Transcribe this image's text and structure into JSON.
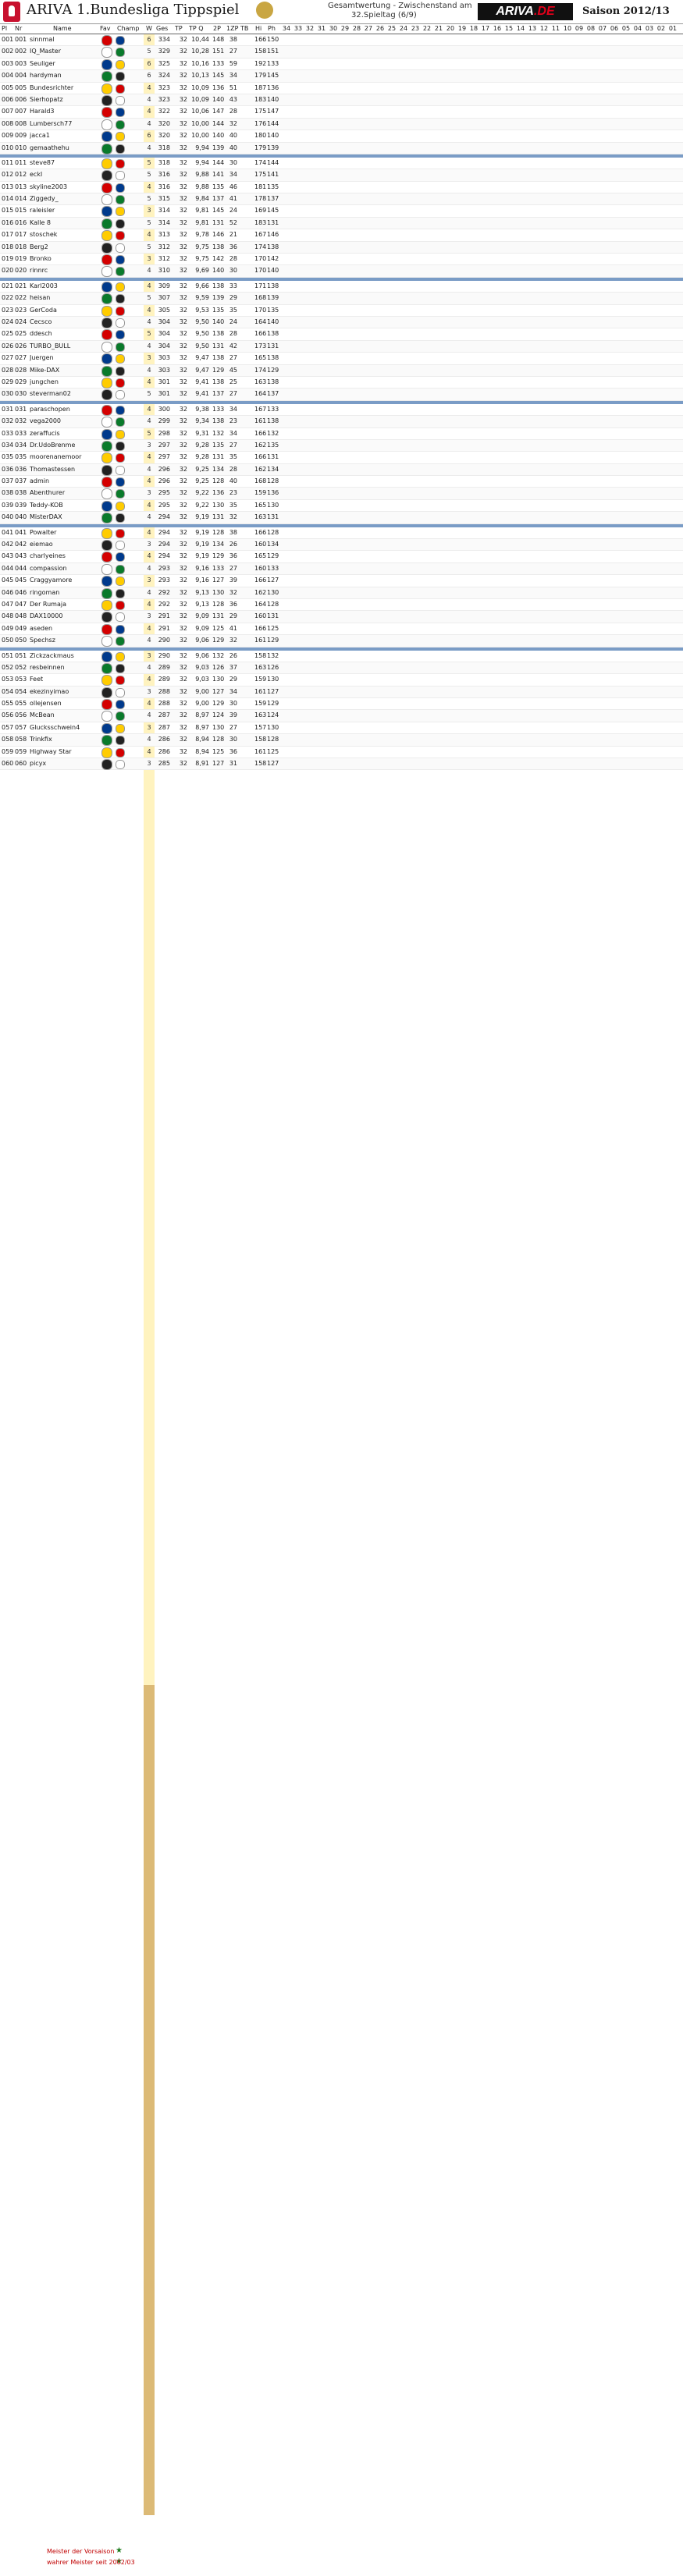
{
  "header": {
    "title": "ARIVA 1.Bundesliga Tippspiel",
    "subtitle_line1": "Gesamtwertung - Zwischenstand am",
    "subtitle_line2": "32.Spieltag (6/9)",
    "brand_main": "ARIVA",
    "brand_dot": ".DE",
    "season": "Saison 2012/13"
  },
  "columns": {
    "rank": "Pl",
    "nr": "Nr",
    "name": "Name",
    "fav": "Fav",
    "champ": "Champ",
    "w": "W",
    "ges": "Ges",
    "tp": "TP",
    "tpq": "TP Q",
    "two_p": "2P",
    "one_zp": "1ZP",
    "tb": "TB",
    "hi": "Hi",
    "ph": "Ph",
    "matchdays": [
      "34",
      "33",
      "32",
      "31",
      "30",
      "29",
      "28",
      "27",
      "26",
      "25",
      "24",
      "23",
      "22",
      "21",
      "20",
      "19",
      "18",
      "17",
      "16",
      "15",
      "14",
      "13",
      "12",
      "11",
      "10",
      "09",
      "08",
      "07",
      "06",
      "05",
      "04",
      "03",
      "02",
      "01"
    ]
  },
  "rows": [
    {
      "rank": "001",
      "nr": "001",
      "name": "sinnmal",
      "ges": "334",
      "tp": "32",
      "tpq": "10,44",
      "two_p": "148",
      "one_zp": "38",
      "tb": "",
      "hi": "166",
      "ph": "150",
      "w": "6"
    },
    {
      "rank": "002",
      "nr": "002",
      "name": "IQ_Master",
      "ges": "329",
      "tp": "32",
      "tpq": "10,28",
      "two_p": "151",
      "one_zp": "27",
      "tb": "",
      "hi": "158",
      "ph": "151",
      "w": "5"
    },
    {
      "rank": "003",
      "nr": "003",
      "name": "Seuliger",
      "ges": "325",
      "tp": "32",
      "tpq": "10,16",
      "two_p": "133",
      "one_zp": "59",
      "tb": "",
      "hi": "192",
      "ph": "133",
      "w": "6"
    },
    {
      "rank": "004",
      "nr": "004",
      "name": "hardyman",
      "ges": "324",
      "tp": "32",
      "tpq": "10,13",
      "two_p": "145",
      "one_zp": "34",
      "tb": "",
      "hi": "179",
      "ph": "145",
      "w": "6"
    },
    {
      "rank": "005",
      "nr": "005",
      "name": "Bundesrichter",
      "ges": "323",
      "tp": "32",
      "tpq": "10,09",
      "two_p": "136",
      "one_zp": "51",
      "tb": "",
      "hi": "187",
      "ph": "136",
      "w": "4"
    },
    {
      "rank": "006",
      "nr": "006",
      "name": "Sierhopatz",
      "ges": "323",
      "tp": "32",
      "tpq": "10,09",
      "two_p": "140",
      "one_zp": "43",
      "tb": "",
      "hi": "183",
      "ph": "140",
      "w": "4"
    },
    {
      "rank": "007",
      "nr": "007",
      "name": "Harald3",
      "ges": "322",
      "tp": "32",
      "tpq": "10,06",
      "two_p": "147",
      "one_zp": "28",
      "tb": "",
      "hi": "175",
      "ph": "147",
      "w": "4"
    },
    {
      "rank": "008",
      "nr": "008",
      "name": "Lumbersch77",
      "ges": "320",
      "tp": "32",
      "tpq": "10,00",
      "two_p": "144",
      "one_zp": "32",
      "tb": "",
      "hi": "176",
      "ph": "144",
      "w": "4"
    },
    {
      "rank": "009",
      "nr": "009",
      "name": "jacca1",
      "ges": "320",
      "tp": "32",
      "tpq": "10,00",
      "two_p": "140",
      "one_zp": "40",
      "tb": "",
      "hi": "180",
      "ph": "140",
      "w": "6"
    },
    {
      "rank": "010",
      "nr": "010",
      "name": "gemaathehu",
      "ges": "318",
      "tp": "32",
      "tpq": "9,94",
      "two_p": "139",
      "one_zp": "40",
      "tb": "",
      "hi": "179",
      "ph": "139",
      "w": "4"
    },
    {
      "rank": "011",
      "nr": "011",
      "name": "steve87",
      "ges": "318",
      "tp": "32",
      "tpq": "9,94",
      "two_p": "144",
      "one_zp": "30",
      "tb": "",
      "hi": "174",
      "ph": "144",
      "w": "5"
    },
    {
      "rank": "012",
      "nr": "012",
      "name": "eckl",
      "ges": "316",
      "tp": "32",
      "tpq": "9,88",
      "two_p": "141",
      "one_zp": "34",
      "tb": "",
      "hi": "175",
      "ph": "141",
      "w": "5"
    },
    {
      "rank": "013",
      "nr": "013",
      "name": "skyline2003",
      "ges": "316",
      "tp": "32",
      "tpq": "9,88",
      "two_p": "135",
      "one_zp": "46",
      "tb": "",
      "hi": "181",
      "ph": "135",
      "w": "4"
    },
    {
      "rank": "014",
      "nr": "014",
      "name": "Ziggedy_",
      "ges": "315",
      "tp": "32",
      "tpq": "9,84",
      "two_p": "137",
      "one_zp": "41",
      "tb": "",
      "hi": "178",
      "ph": "137",
      "w": "5"
    },
    {
      "rank": "015",
      "nr": "015",
      "name": "raleisler",
      "ges": "314",
      "tp": "32",
      "tpq": "9,81",
      "two_p": "145",
      "one_zp": "24",
      "tb": "",
      "hi": "169",
      "ph": "145",
      "w": "3"
    },
    {
      "rank": "016",
      "nr": "016",
      "name": "Kalle 8",
      "ges": "314",
      "tp": "32",
      "tpq": "9,81",
      "two_p": "131",
      "one_zp": "52",
      "tb": "",
      "hi": "183",
      "ph": "131",
      "w": "5"
    },
    {
      "rank": "017",
      "nr": "017",
      "name": "stoschek",
      "ges": "313",
      "tp": "32",
      "tpq": "9,78",
      "two_p": "146",
      "one_zp": "21",
      "tb": "",
      "hi": "167",
      "ph": "146",
      "w": "4"
    },
    {
      "rank": "018",
      "nr": "018",
      "name": "Berg2",
      "ges": "312",
      "tp": "32",
      "tpq": "9,75",
      "two_p": "138",
      "one_zp": "36",
      "tb": "",
      "hi": "174",
      "ph": "138",
      "w": "5"
    },
    {
      "rank": "019",
      "nr": "019",
      "name": "Bronko",
      "ges": "312",
      "tp": "32",
      "tpq": "9,75",
      "two_p": "142",
      "one_zp": "28",
      "tb": "",
      "hi": "170",
      "ph": "142",
      "w": "3"
    },
    {
      "rank": "020",
      "nr": "020",
      "name": "rinnrc",
      "ges": "310",
      "tp": "32",
      "tpq": "9,69",
      "two_p": "140",
      "one_zp": "30",
      "tb": "",
      "hi": "170",
      "ph": "140",
      "w": "4"
    },
    {
      "rank": "021",
      "nr": "021",
      "name": "Karl2003",
      "ges": "309",
      "tp": "32",
      "tpq": "9,66",
      "two_p": "138",
      "one_zp": "33",
      "tb": "",
      "hi": "171",
      "ph": "138",
      "w": "4"
    },
    {
      "rank": "022",
      "nr": "022",
      "name": "heisan",
      "ges": "307",
      "tp": "32",
      "tpq": "9,59",
      "two_p": "139",
      "one_zp": "29",
      "tb": "",
      "hi": "168",
      "ph": "139",
      "w": "5"
    },
    {
      "rank": "023",
      "nr": "023",
      "name": "GerCoda",
      "ges": "305",
      "tp": "32",
      "tpq": "9,53",
      "two_p": "135",
      "one_zp": "35",
      "tb": "",
      "hi": "170",
      "ph": "135",
      "w": "4"
    },
    {
      "rank": "024",
      "nr": "024",
      "name": "Cecsco",
      "ges": "304",
      "tp": "32",
      "tpq": "9,50",
      "two_p": "140",
      "one_zp": "24",
      "tb": "",
      "hi": "164",
      "ph": "140",
      "w": "4"
    },
    {
      "rank": "025",
      "nr": "025",
      "name": "ddesch",
      "ges": "304",
      "tp": "32",
      "tpq": "9,50",
      "two_p": "138",
      "one_zp": "28",
      "tb": "",
      "hi": "166",
      "ph": "138",
      "w": "5"
    },
    {
      "rank": "026",
      "nr": "026",
      "name": "TURBO_BULL",
      "ges": "304",
      "tp": "32",
      "tpq": "9,50",
      "two_p": "131",
      "one_zp": "42",
      "tb": "",
      "hi": "173",
      "ph": "131",
      "w": "4"
    },
    {
      "rank": "027",
      "nr": "027",
      "name": "Juergen",
      "ges": "303",
      "tp": "32",
      "tpq": "9,47",
      "two_p": "138",
      "one_zp": "27",
      "tb": "",
      "hi": "165",
      "ph": "138",
      "w": "3"
    },
    {
      "rank": "028",
      "nr": "028",
      "name": "Mike-DAX",
      "ges": "303",
      "tp": "32",
      "tpq": "9,47",
      "two_p": "129",
      "one_zp": "45",
      "tb": "",
      "hi": "174",
      "ph": "129",
      "w": "4"
    },
    {
      "rank": "029",
      "nr": "029",
      "name": "jungchen",
      "ges": "301",
      "tp": "32",
      "tpq": "9,41",
      "two_p": "138",
      "one_zp": "25",
      "tb": "",
      "hi": "163",
      "ph": "138",
      "w": "4"
    },
    {
      "rank": "030",
      "nr": "030",
      "name": "steverman02",
      "ges": "301",
      "tp": "32",
      "tpq": "9,41",
      "two_p": "137",
      "one_zp": "27",
      "tb": "",
      "hi": "164",
      "ph": "137",
      "w": "5"
    },
    {
      "rank": "031",
      "nr": "031",
      "name": "paraschopen",
      "ges": "300",
      "tp": "32",
      "tpq": "9,38",
      "two_p": "133",
      "one_zp": "34",
      "tb": "",
      "hi": "167",
      "ph": "133",
      "w": "4"
    },
    {
      "rank": "032",
      "nr": "032",
      "name": "vega2000",
      "ges": "299",
      "tp": "32",
      "tpq": "9,34",
      "two_p": "138",
      "one_zp": "23",
      "tb": "",
      "hi": "161",
      "ph": "138",
      "w": "4"
    },
    {
      "rank": "033",
      "nr": "033",
      "name": "zeraffucis",
      "ges": "298",
      "tp": "32",
      "tpq": "9,31",
      "two_p": "132",
      "one_zp": "34",
      "tb": "",
      "hi": "166",
      "ph": "132",
      "w": "5"
    },
    {
      "rank": "034",
      "nr": "034",
      "name": "Dr.UdoBrenme",
      "ges": "297",
      "tp": "32",
      "tpq": "9,28",
      "two_p": "135",
      "one_zp": "27",
      "tb": "",
      "hi": "162",
      "ph": "135",
      "w": "3"
    },
    {
      "rank": "035",
      "nr": "035",
      "name": "moorenanemoor",
      "ges": "297",
      "tp": "32",
      "tpq": "9,28",
      "two_p": "131",
      "one_zp": "35",
      "tb": "",
      "hi": "166",
      "ph": "131",
      "w": "4"
    },
    {
      "rank": "036",
      "nr": "036",
      "name": "Thomastessen",
      "ges": "296",
      "tp": "32",
      "tpq": "9,25",
      "two_p": "134",
      "one_zp": "28",
      "tb": "",
      "hi": "162",
      "ph": "134",
      "w": "4"
    },
    {
      "rank": "037",
      "nr": "037",
      "name": "admin",
      "ges": "296",
      "tp": "32",
      "tpq": "9,25",
      "two_p": "128",
      "one_zp": "40",
      "tb": "",
      "hi": "168",
      "ph": "128",
      "w": "4"
    },
    {
      "rank": "038",
      "nr": "038",
      "name": "Abenthurer",
      "ges": "295",
      "tp": "32",
      "tpq": "9,22",
      "two_p": "136",
      "one_zp": "23",
      "tb": "",
      "hi": "159",
      "ph": "136",
      "w": "3"
    },
    {
      "rank": "039",
      "nr": "039",
      "name": "Teddy-KOB",
      "ges": "295",
      "tp": "32",
      "tpq": "9,22",
      "two_p": "130",
      "one_zp": "35",
      "tb": "",
      "hi": "165",
      "ph": "130",
      "w": "4"
    },
    {
      "rank": "040",
      "nr": "040",
      "name": "MisterDAX",
      "ges": "294",
      "tp": "32",
      "tpq": "9,19",
      "two_p": "131",
      "one_zp": "32",
      "tb": "",
      "hi": "163",
      "ph": "131",
      "w": "4"
    },
    {
      "rank": "041",
      "nr": "041",
      "name": "Powalter",
      "ges": "294",
      "tp": "32",
      "tpq": "9,19",
      "two_p": "128",
      "one_zp": "38",
      "tb": "",
      "hi": "166",
      "ph": "128",
      "w": "4"
    },
    {
      "rank": "042",
      "nr": "042",
      "name": "eiemao",
      "ges": "294",
      "tp": "32",
      "tpq": "9,19",
      "two_p": "134",
      "one_zp": "26",
      "tb": "",
      "hi": "160",
      "ph": "134",
      "w": "3"
    },
    {
      "rank": "043",
      "nr": "043",
      "name": "charlyeines",
      "ges": "294",
      "tp": "32",
      "tpq": "9,19",
      "two_p": "129",
      "one_zp": "36",
      "tb": "",
      "hi": "165",
      "ph": "129",
      "w": "4"
    },
    {
      "rank": "044",
      "nr": "044",
      "name": "compassion",
      "ges": "293",
      "tp": "32",
      "tpq": "9,16",
      "two_p": "133",
      "one_zp": "27",
      "tb": "",
      "hi": "160",
      "ph": "133",
      "w": "4"
    },
    {
      "rank": "045",
      "nr": "045",
      "name": "Craggyamore",
      "ges": "293",
      "tp": "32",
      "tpq": "9,16",
      "two_p": "127",
      "one_zp": "39",
      "tb": "",
      "hi": "166",
      "ph": "127",
      "w": "3"
    },
    {
      "rank": "046",
      "nr": "046",
      "name": "ringoman",
      "ges": "292",
      "tp": "32",
      "tpq": "9,13",
      "two_p": "130",
      "one_zp": "32",
      "tb": "",
      "hi": "162",
      "ph": "130",
      "w": "4"
    },
    {
      "rank": "047",
      "nr": "047",
      "name": "Der Rumaja",
      "ges": "292",
      "tp": "32",
      "tpq": "9,13",
      "two_p": "128",
      "one_zp": "36",
      "tb": "",
      "hi": "164",
      "ph": "128",
      "w": "4"
    },
    {
      "rank": "048",
      "nr": "048",
      "name": "DAX10000",
      "ges": "291",
      "tp": "32",
      "tpq": "9,09",
      "two_p": "131",
      "one_zp": "29",
      "tb": "",
      "hi": "160",
      "ph": "131",
      "w": "3"
    },
    {
      "rank": "049",
      "nr": "049",
      "name": "aseden",
      "ges": "291",
      "tp": "32",
      "tpq": "9,09",
      "two_p": "125",
      "one_zp": "41",
      "tb": "",
      "hi": "166",
      "ph": "125",
      "w": "4"
    },
    {
      "rank": "050",
      "nr": "050",
      "name": "Spechsz",
      "ges": "290",
      "tp": "32",
      "tpq": "9,06",
      "two_p": "129",
      "one_zp": "32",
      "tb": "",
      "hi": "161",
      "ph": "129",
      "w": "4"
    },
    {
      "rank": "051",
      "nr": "051",
      "name": "Zickzackmaus",
      "ges": "290",
      "tp": "32",
      "tpq": "9,06",
      "two_p": "132",
      "one_zp": "26",
      "tb": "",
      "hi": "158",
      "ph": "132",
      "w": "3"
    },
    {
      "rank": "052",
      "nr": "052",
      "name": "resbeinnen",
      "ges": "289",
      "tp": "32",
      "tpq": "9,03",
      "two_p": "126",
      "one_zp": "37",
      "tb": "",
      "hi": "163",
      "ph": "126",
      "w": "4"
    },
    {
      "rank": "053",
      "nr": "053",
      "name": "Feet",
      "ges": "289",
      "tp": "32",
      "tpq": "9,03",
      "two_p": "130",
      "one_zp": "29",
      "tb": "",
      "hi": "159",
      "ph": "130",
      "w": "4"
    },
    {
      "rank": "054",
      "nr": "054",
      "name": "ekezinyimao",
      "ges": "288",
      "tp": "32",
      "tpq": "9,00",
      "two_p": "127",
      "one_zp": "34",
      "tb": "",
      "hi": "161",
      "ph": "127",
      "w": "3"
    },
    {
      "rank": "055",
      "nr": "055",
      "name": "ollejensen",
      "ges": "288",
      "tp": "32",
      "tpq": "9,00",
      "two_p": "129",
      "one_zp": "30",
      "tb": "",
      "hi": "159",
      "ph": "129",
      "w": "4"
    },
    {
      "rank": "056",
      "nr": "056",
      "name": "McBean",
      "ges": "287",
      "tp": "32",
      "tpq": "8,97",
      "two_p": "124",
      "one_zp": "39",
      "tb": "",
      "hi": "163",
      "ph": "124",
      "w": "4"
    },
    {
      "rank": "057",
      "nr": "057",
      "name": "Glucksschwein4",
      "ges": "287",
      "tp": "32",
      "tpq": "8,97",
      "two_p": "130",
      "one_zp": "27",
      "tb": "",
      "hi": "157",
      "ph": "130",
      "w": "3"
    },
    {
      "rank": "058",
      "nr": "058",
      "name": "Trinkfix",
      "ges": "286",
      "tp": "32",
      "tpq": "8,94",
      "two_p": "128",
      "one_zp": "30",
      "tb": "",
      "hi": "158",
      "ph": "128",
      "w": "4"
    },
    {
      "rank": "059",
      "nr": "059",
      "name": "Highway Star",
      "ges": "286",
      "tp": "32",
      "tpq": "8,94",
      "two_p": "125",
      "one_zp": "36",
      "tb": "",
      "hi": "161",
      "ph": "125",
      "w": "4"
    },
    {
      "rank": "060",
      "nr": "060",
      "name": "picyx",
      "ges": "285",
      "tp": "32",
      "tpq": "8,91",
      "two_p": "127",
      "one_zp": "31",
      "tb": "",
      "hi": "158",
      "ph": "127",
      "w": "3"
    }
  ],
  "colors": {
    "accent": "#e2001a",
    "highlight": "#9be85b",
    "low": "#e7a3a3",
    "bar": "#b8d8ec",
    "separator": "#7a9cc6"
  },
  "footer": {
    "line1": "Meister der Vorsaison",
    "line2": "wahrer Meister seit 2002/03"
  }
}
